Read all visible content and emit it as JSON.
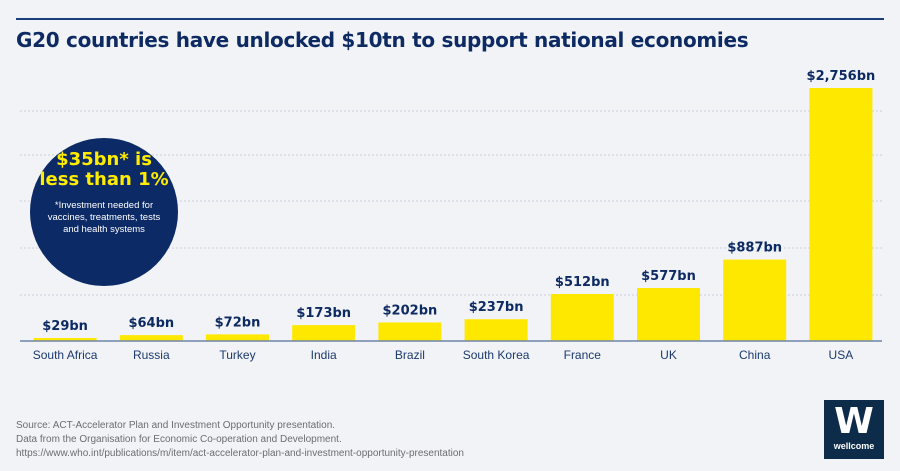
{
  "chart_data": {
    "type": "bar",
    "title": "G20 countries have unlocked $10tn to support national economies",
    "categories": [
      "South Africa",
      "Russia",
      "Turkey",
      "India",
      "Brazil",
      "South Korea",
      "France",
      "UK",
      "China",
      "USA"
    ],
    "values": [
      29,
      64,
      72,
      173,
      202,
      237,
      512,
      577,
      887,
      2756
    ],
    "data_labels": [
      "$29bn",
      "$64bn",
      "$72bn",
      "$173bn",
      "$202bn",
      "$237bn",
      "$512bn",
      "$577bn",
      "$887bn",
      "$2,756bn"
    ],
    "unit": "bn",
    "ylim": [
      0,
      2756
    ],
    "grid": true,
    "bar_color": "#ffe800",
    "label_color": "#0e2a63"
  },
  "annotation": {
    "headline_line1": "$35bn* is",
    "headline_line2": "less than 1%",
    "footnote": "*Investment needed for vaccines, treatments, tests and health systems"
  },
  "source": {
    "line1": "Source: ACT-Accelerator Plan and Investment Opportunity presentation.",
    "line2": "Data from the Organisation for Economic Co-operation and Development.",
    "line3": "https://www.who.int/publications/m/item/act-accelerator-plan-and-investment-opportunity-presentation"
  },
  "logo": {
    "letter": "W",
    "text": "wellcome"
  }
}
